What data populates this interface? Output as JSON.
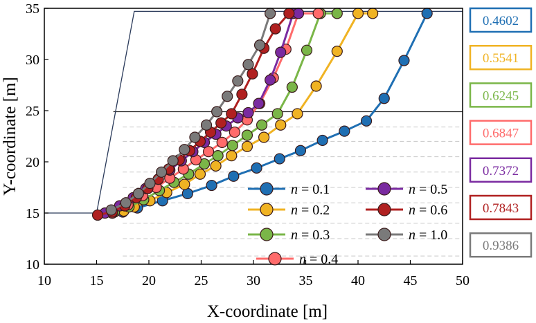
{
  "chart_data": {
    "type": "line",
    "xlabel": "X-coordinate [m]",
    "ylabel": "Y-coordinate [m]",
    "xlim": [
      10,
      50
    ],
    "ylim": [
      10,
      35
    ],
    "xticks": [
      10,
      15,
      20,
      25,
      30,
      35,
      40,
      45,
      50
    ],
    "yticks": [
      10,
      15,
      20,
      25,
      30,
      35
    ],
    "grid": false,
    "legend_position": "bottom-right",
    "slope_outline": {
      "surface": [
        [
          10,
          15
        ],
        [
          15,
          15
        ],
        [
          18.6,
          34.7
        ],
        [
          50,
          34.7
        ]
      ],
      "layer_boundary_y": 24.9,
      "dashed_layer_y": [
        23.4,
        22.0,
        20.5,
        19.0,
        17.5,
        16.0,
        14.0,
        12.5,
        10.8
      ]
    },
    "series": [
      {
        "name": "n = 0.1",
        "n_label": "n",
        "n_value": "= 0.1",
        "color": "#1f6fb3",
        "factor": "0.4602",
        "x": [
          16.5,
          17.5,
          18.9,
          21.3,
          23.7,
          26.0,
          28.1,
          30.3,
          32.5,
          34.5,
          36.6,
          38.7,
          40.8,
          42.5,
          44.4,
          46.6
        ],
        "y": [
          15.0,
          15.1,
          15.5,
          16.2,
          16.9,
          17.7,
          18.6,
          19.4,
          20.3,
          21.1,
          22.1,
          23.0,
          24.0,
          26.2,
          29.9,
          34.5
        ]
      },
      {
        "name": "n = 0.2",
        "n_label": "n",
        "n_value": "= 0.2",
        "color": "#f0b323",
        "factor": "0.5541",
        "x": [
          16.5,
          17.6,
          18.6,
          20.1,
          21.7,
          23.4,
          24.9,
          26.4,
          27.9,
          29.4,
          31.0,
          32.6,
          34.2,
          36.0,
          38.0,
          40.0,
          41.4
        ],
        "y": [
          15.0,
          15.2,
          15.6,
          16.2,
          17.0,
          17.8,
          18.8,
          19.6,
          20.6,
          21.5,
          22.4,
          23.6,
          24.7,
          27.4,
          30.8,
          34.5,
          34.5
        ]
      },
      {
        "name": "n = 0.3",
        "n_label": "n",
        "n_value": "= 0.3",
        "color": "#7ab648",
        "factor": "0.6245",
        "x": [
          16.7,
          18.1,
          19.5,
          21.0,
          22.4,
          23.8,
          25.3,
          26.6,
          28.0,
          29.4,
          30.8,
          32.3,
          33.7,
          35.1,
          36.4,
          38.0
        ],
        "y": [
          15.1,
          15.6,
          16.3,
          17.2,
          18.0,
          18.8,
          19.8,
          20.6,
          21.6,
          22.6,
          23.6,
          24.7,
          27.3,
          30.9,
          34.5,
          34.5
        ]
      },
      {
        "name": "n = 0.4",
        "n_label": "n",
        "n_value": "= 0.4",
        "color": "#ff6b6b",
        "factor": "0.6847",
        "x": [
          16.5,
          18.0,
          19.4,
          20.7,
          22.0,
          23.3,
          24.5,
          25.7,
          27.0,
          28.2,
          29.4,
          30.6,
          31.9,
          33.1,
          34.3,
          36.2
        ],
        "y": [
          15.0,
          15.8,
          16.7,
          17.5,
          18.4,
          19.3,
          20.2,
          21.0,
          21.9,
          22.9,
          24.1,
          25.7,
          28.2,
          31.0,
          34.5,
          34.5
        ]
      },
      {
        "name": "n = 0.5",
        "n_label": "n",
        "n_value": "= 0.5",
        "color": "#7a2aa0",
        "factor": "0.7372",
        "x": [
          15.8,
          17.2,
          18.5,
          19.7,
          20.9,
          22.0,
          23.1,
          24.2,
          25.3,
          26.4,
          27.4,
          28.5,
          29.5,
          30.5,
          31.6,
          32.6,
          33.8,
          34.3
        ],
        "y": [
          15.0,
          15.7,
          16.5,
          17.4,
          18.3,
          19.2,
          20.1,
          21.0,
          21.9,
          22.7,
          23.5,
          24.3,
          24.8,
          25.7,
          28.0,
          30.7,
          34.5,
          34.5
        ]
      },
      {
        "name": "n = 0.6",
        "n_label": "n",
        "n_value": "= 0.6",
        "color": "#b02020",
        "factor": "0.7843",
        "x": [
          15.1,
          16.5,
          17.7,
          18.8,
          19.9,
          20.9,
          21.9,
          22.9,
          23.9,
          24.9,
          25.9,
          26.9,
          27.9,
          28.9,
          29.9,
          31.0,
          32.1,
          33.4
        ],
        "y": [
          14.8,
          15.1,
          15.7,
          16.5,
          17.4,
          18.3,
          19.3,
          20.2,
          21.1,
          22.0,
          22.9,
          23.8,
          24.7,
          26.6,
          28.6,
          31.1,
          33.0,
          34.5
        ]
      },
      {
        "name": "n = 1.0",
        "n_label": "n",
        "n_value": "= 1.0",
        "color": "#7a7a7a",
        "factor": "0.9386",
        "x": [
          16.4,
          17.8,
          19.0,
          20.1,
          21.2,
          22.3,
          23.4,
          24.4,
          25.5,
          26.5,
          27.5,
          28.5,
          29.5,
          30.6,
          31.6
        ],
        "y": [
          15.3,
          16.0,
          16.9,
          17.9,
          19.0,
          20.1,
          21.2,
          22.4,
          23.6,
          24.9,
          26.4,
          27.9,
          29.5,
          31.4,
          34.5
        ]
      }
    ],
    "factor_labels": [
      "0.4602",
      "0.5541",
      "0.6245",
      "0.6847",
      "0.7372",
      "0.7843",
      "0.9386"
    ]
  }
}
